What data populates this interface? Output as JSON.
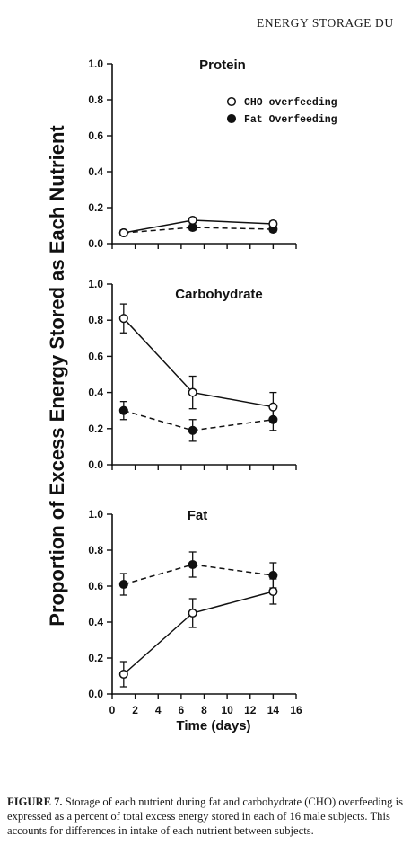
{
  "page": {
    "header": "ENERGY STORAGE DU",
    "caption_label": "FIGURE 7.",
    "caption_text": "Storage of each nutrient during fat and carbohydrate (CHO) overfeeding is expressed as a percent of total excess energy stored in each of 16 male subjects. This accounts for differences in intake of each nutrient between subjects."
  },
  "chart_data": {
    "type": "line",
    "ylabel": "Proportion of Excess Energy Stored as Each Nutrient",
    "xlabel": "Time (days)",
    "xlim": [
      0,
      16
    ],
    "xticks": [
      0,
      2,
      4,
      6,
      8,
      10,
      12,
      14,
      16
    ],
    "ylim": [
      0,
      1.0
    ],
    "yticks": [
      "0.0",
      "0.2",
      "0.4",
      "0.6",
      "0.8",
      "1.0"
    ],
    "legend": {
      "placement": "top-right of Protein panel",
      "entries": [
        {
          "label": "CHO overfeeding",
          "marker": "open-circle",
          "line": "solid"
        },
        {
          "label": "Fat Overfeeding",
          "marker": "filled-circle",
          "line": "dashed"
        }
      ]
    },
    "panels": [
      {
        "title": "Protein",
        "series": [
          {
            "key": "cho",
            "x": [
              1,
              7,
              14
            ],
            "y": [
              0.06,
              0.13,
              0.11
            ],
            "err": [
              0.015,
              0.015,
              0.015
            ]
          },
          {
            "key": "fat",
            "x": [
              1,
              7,
              14
            ],
            "y": [
              0.06,
              0.09,
              0.08
            ],
            "err": [
              0.015,
              0.015,
              0.015
            ]
          }
        ]
      },
      {
        "title": "Carbohydrate",
        "series": [
          {
            "key": "cho",
            "x": [
              1,
              7,
              14
            ],
            "y": [
              0.81,
              0.4,
              0.32
            ],
            "err": [
              0.08,
              0.09,
              0.08
            ]
          },
          {
            "key": "fat",
            "x": [
              1,
              7,
              14
            ],
            "y": [
              0.3,
              0.19,
              0.25
            ],
            "err": [
              0.05,
              0.06,
              0.06
            ]
          }
        ]
      },
      {
        "title": "Fat",
        "series": [
          {
            "key": "cho",
            "x": [
              1,
              7,
              14
            ],
            "y": [
              0.11,
              0.45,
              0.57
            ],
            "err": [
              0.07,
              0.08,
              0.07
            ]
          },
          {
            "key": "fat",
            "x": [
              1,
              7,
              14
            ],
            "y": [
              0.61,
              0.72,
              0.66
            ],
            "err": [
              0.06,
              0.07,
              0.07
            ]
          }
        ]
      }
    ]
  }
}
